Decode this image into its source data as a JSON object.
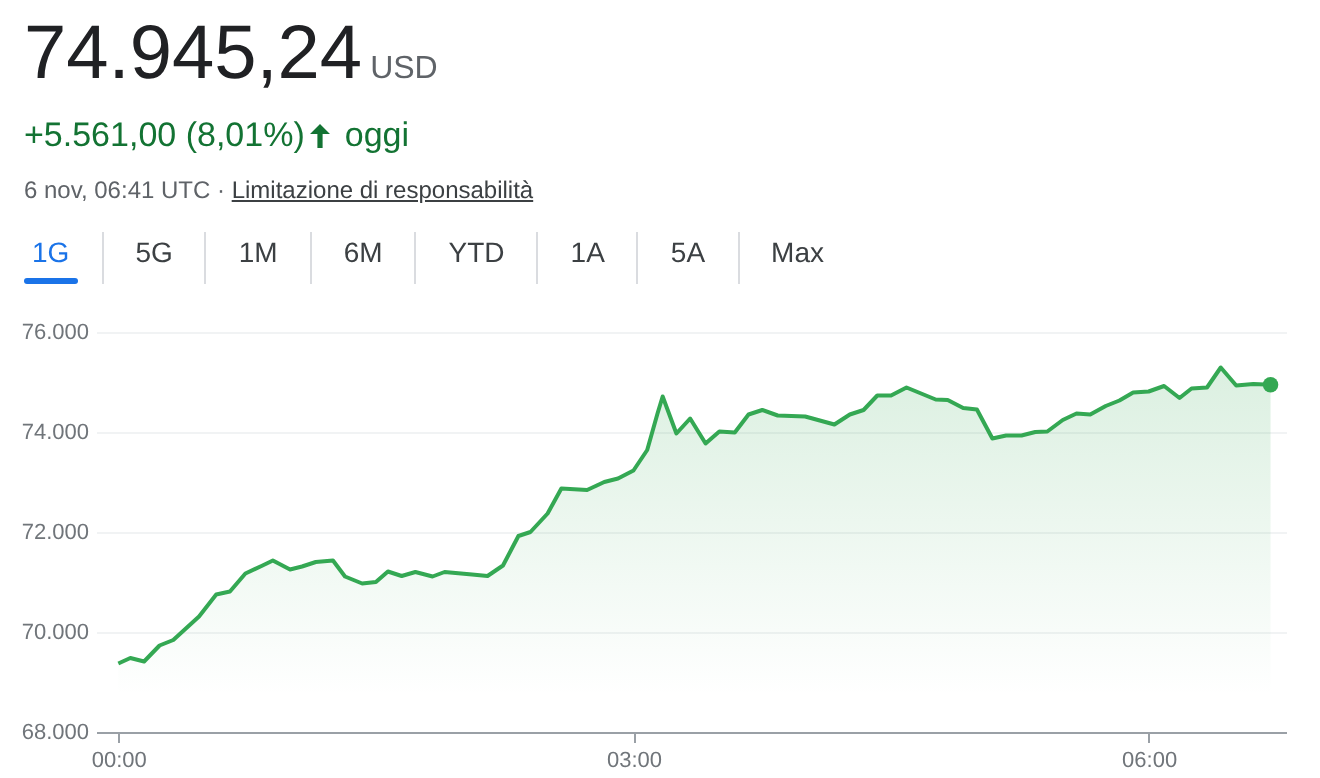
{
  "chart_data": {
    "type": "area",
    "title": "74.945,24",
    "annotations": [
      "USD",
      "+5.561,00 (8,01%)",
      "oggi",
      "6 nov, 06:41 UTC ·",
      "Limitazione di responsabilità",
      "1G",
      "5G",
      "1M",
      "6M",
      "YTD",
      "1A",
      "5A",
      "Max"
    ],
    "x": [
      0,
      0.07,
      0.15,
      0.24,
      0.32,
      0.47,
      0.57,
      0.65,
      0.74,
      0.84,
      0.9,
      1.0,
      1.07,
      1.15,
      1.25,
      1.32,
      1.42,
      1.5,
      1.57,
      1.65,
      1.73,
      1.83,
      1.9,
      2.06,
      2.15,
      2.24,
      2.33,
      2.4,
      2.5,
      2.58,
      2.73,
      2.83,
      2.91,
      3.0,
      3.08,
      3.14,
      3.17,
      3.25,
      3.33,
      3.42,
      3.5,
      3.59,
      3.67,
      3.75,
      3.84,
      4.0,
      4.17,
      4.26,
      4.34,
      4.42,
      4.5,
      4.59,
      4.76,
      4.83,
      4.92,
      5.0,
      5.09,
      5.17,
      5.26,
      5.34,
      5.41,
      5.5,
      5.58,
      5.66,
      5.75,
      5.83,
      5.91,
      6.0,
      6.09,
      6.18,
      6.25,
      6.34,
      6.42,
      6.51,
      6.61,
      6.71
    ],
    "series": [
      {
        "color": "#34a853",
        "values": [
          69370,
          69480,
          69410,
          69730,
          69840,
          70310,
          70750,
          70810,
          71170,
          71330,
          71430,
          71250,
          71310,
          71400,
          71430,
          71110,
          70970,
          71000,
          71210,
          71120,
          71200,
          71110,
          71200,
          71150,
          71120,
          71330,
          71920,
          72000,
          72370,
          72870,
          72840,
          73000,
          73070,
          73230,
          73640,
          74370,
          74710,
          73970,
          74270,
          73770,
          74010,
          73990,
          74350,
          74440,
          74330,
          74310,
          74150,
          74350,
          74440,
          74730,
          74730,
          74890,
          74650,
          74640,
          74480,
          74450,
          73870,
          73930,
          73930,
          74000,
          74010,
          74240,
          74370,
          74350,
          74520,
          74630,
          74790,
          74810,
          74920,
          74680,
          74870,
          74890,
          75290,
          74930,
          74960,
          74945
        ]
      }
    ],
    "xlim": [
      -0.13,
      6.8
    ],
    "xticks": [
      {
        "value": 0,
        "label": "00:00"
      },
      {
        "value": 3,
        "label": "03:00"
      },
      {
        "value": 6,
        "label": "06:00"
      }
    ],
    "ylim": [
      68000,
      76000
    ],
    "yticks": [
      {
        "value": 68000,
        "label": "68.000"
      },
      {
        "value": 70000,
        "label": "70.000"
      },
      {
        "value": 72000,
        "label": "72.000"
      },
      {
        "value": 74000,
        "label": "74.000"
      },
      {
        "value": 76000,
        "label": "76.000"
      }
    ],
    "grid": "y"
  }
}
